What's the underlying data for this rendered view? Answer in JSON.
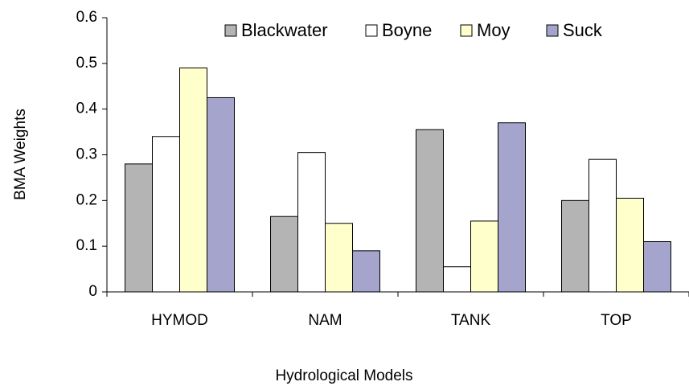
{
  "chart_data": {
    "type": "bar",
    "x_label": "Hydrological Models",
    "y_label": "BMA Weights",
    "categories": [
      "HYMOD",
      "NAM",
      "TANK",
      "TOP"
    ],
    "series": [
      {
        "name": "Blackwater",
        "color": "#b4b4b4",
        "values": [
          0.28,
          0.165,
          0.355,
          0.2
        ]
      },
      {
        "name": "Boyne",
        "color": "#ffffff",
        "values": [
          0.34,
          0.305,
          0.055,
          0.29
        ]
      },
      {
        "name": "Moy",
        "color": "#ffffcc",
        "values": [
          0.49,
          0.15,
          0.155,
          0.205
        ]
      },
      {
        "name": "Suck",
        "color": "#a4a4cc",
        "values": [
          0.425,
          0.09,
          0.37,
          0.11
        ]
      }
    ],
    "ylim": [
      0,
      0.6
    ],
    "yticks": [
      0,
      0.1,
      0.2,
      0.3,
      0.4,
      0.5,
      0.6
    ],
    "legend": "top"
  }
}
